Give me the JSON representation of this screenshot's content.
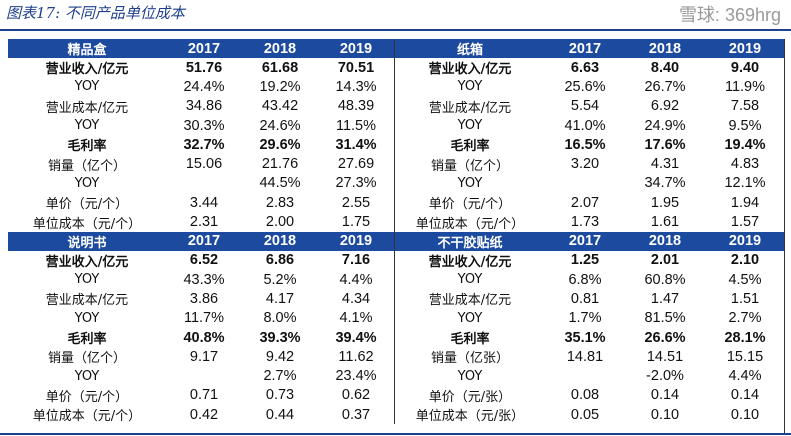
{
  "title": "图表17:  不同产品单位成本",
  "watermark": "雪球: 369hrg",
  "header_color": "#1c4a9e",
  "sections": [
    [
      {
        "name": "精品盒",
        "years": [
          "2017",
          "2018",
          "2019"
        ],
        "rows": [
          {
            "label": "营业收入/亿元",
            "v": [
              "51.76",
              "61.68",
              "70.51"
            ],
            "bold": true
          },
          {
            "label": "YOY",
            "v": [
              "24.4%",
              "19.2%",
              "14.3%"
            ]
          },
          {
            "label": "营业成本/亿元",
            "v": [
              "34.86",
              "43.42",
              "48.39"
            ]
          },
          {
            "label": "YOY",
            "v": [
              "30.3%",
              "24.6%",
              "11.5%"
            ]
          },
          {
            "label": "毛利率",
            "v": [
              "32.7%",
              "29.6%",
              "31.4%"
            ],
            "bold": true
          },
          {
            "label": "销量（亿个）",
            "v": [
              "15.06",
              "21.76",
              "27.69"
            ]
          },
          {
            "label": "YOY",
            "v": [
              "",
              "44.5%",
              "27.3%"
            ]
          },
          {
            "label": "单价（元/个）",
            "v": [
              "3.44",
              "2.83",
              "2.55"
            ]
          },
          {
            "label": "单位成本（元/个）",
            "v": [
              "2.31",
              "2.00",
              "1.75"
            ]
          }
        ]
      },
      {
        "name": "纸箱",
        "years": [
          "2017",
          "2018",
          "2019"
        ],
        "rows": [
          {
            "label": "营业收入/亿元",
            "v": [
              "6.63",
              "8.40",
              "9.40"
            ],
            "bold": true
          },
          {
            "label": "YOY",
            "v": [
              "25.6%",
              "26.7%",
              "11.9%"
            ]
          },
          {
            "label": "营业成本/亿元",
            "v": [
              "5.54",
              "6.92",
              "7.58"
            ]
          },
          {
            "label": "YOY",
            "v": [
              "41.0%",
              "24.9%",
              "9.5%"
            ]
          },
          {
            "label": "毛利率",
            "v": [
              "16.5%",
              "17.6%",
              "19.4%"
            ],
            "bold": true
          },
          {
            "label": "销量（亿个）",
            "v": [
              "3.20",
              "4.31",
              "4.83"
            ]
          },
          {
            "label": "YOY",
            "v": [
              "",
              "34.7%",
              "12.1%"
            ]
          },
          {
            "label": "单价（元/个）",
            "v": [
              "2.07",
              "1.95",
              "1.94"
            ]
          },
          {
            "label": "单位成本（元/个）",
            "v": [
              "1.73",
              "1.61",
              "1.57"
            ]
          }
        ]
      }
    ],
    [
      {
        "name": "说明书",
        "years": [
          "2017",
          "2018",
          "2019"
        ],
        "rows": [
          {
            "label": "营业收入/亿元",
            "v": [
              "6.52",
              "6.86",
              "7.16"
            ],
            "bold": true
          },
          {
            "label": "YOY",
            "v": [
              "43.3%",
              "5.2%",
              "4.4%"
            ]
          },
          {
            "label": "营业成本/亿元",
            "v": [
              "3.86",
              "4.17",
              "4.34"
            ]
          },
          {
            "label": "YOY",
            "v": [
              "11.7%",
              "8.0%",
              "4.1%"
            ]
          },
          {
            "label": "毛利率",
            "v": [
              "40.8%",
              "39.3%",
              "39.4%"
            ],
            "bold": true
          },
          {
            "label": "销量（亿个）",
            "v": [
              "9.17",
              "9.42",
              "11.62"
            ]
          },
          {
            "label": "YOY",
            "v": [
              "",
              "2.7%",
              "23.4%"
            ]
          },
          {
            "label": "单价（元/个）",
            "v": [
              "0.71",
              "0.73",
              "0.62"
            ]
          },
          {
            "label": "单位成本（元/个）",
            "v": [
              "0.42",
              "0.44",
              "0.37"
            ]
          }
        ]
      },
      {
        "name": "不干胶贴纸",
        "years": [
          "2017",
          "2018",
          "2019"
        ],
        "rows": [
          {
            "label": "营业收入/亿元",
            "v": [
              "1.25",
              "2.01",
              "2.10"
            ],
            "bold": true
          },
          {
            "label": "YOY",
            "v": [
              "6.8%",
              "60.8%",
              "4.5%"
            ]
          },
          {
            "label": "营业成本/亿元",
            "v": [
              "0.81",
              "1.47",
              "1.51"
            ]
          },
          {
            "label": "YOY",
            "v": [
              "1.7%",
              "81.5%",
              "2.7%"
            ]
          },
          {
            "label": "毛利率",
            "v": [
              "35.1%",
              "26.6%",
              "28.1%"
            ],
            "bold": true
          },
          {
            "label": "销量（亿张）",
            "v": [
              "14.81",
              "14.51",
              "15.15"
            ]
          },
          {
            "label": "YOY",
            "v": [
              "",
              "-2.0%",
              "4.4%"
            ]
          },
          {
            "label": "单价（元/张）",
            "v": [
              "0.08",
              "0.14",
              "0.14"
            ]
          },
          {
            "label": "单位成本（元/张）",
            "v": [
              "0.05",
              "0.10",
              "0.10"
            ]
          }
        ]
      }
    ]
  ]
}
